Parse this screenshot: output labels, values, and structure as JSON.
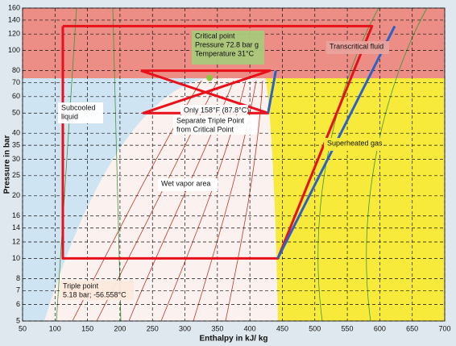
{
  "chart_data": {
    "type": "line",
    "xlabel": "Enthalpy  in  kJ/ kg",
    "ylabel": "Pressure in bar",
    "xlim": [
      50,
      700
    ],
    "ylim": [
      5,
      160
    ],
    "ylog": true,
    "grid": true,
    "xticks": [
      50,
      100,
      150,
      200,
      250,
      300,
      350,
      400,
      450,
      500,
      550,
      600,
      650,
      700
    ],
    "yticks": [
      5,
      6,
      7,
      8,
      10,
      12,
      14,
      16,
      20,
      25,
      30,
      35,
      40,
      50,
      60,
      70,
      80,
      100,
      120,
      140,
      160
    ],
    "series": [
      {
        "color": "#e8101a",
        "x": [
          112,
          588,
          443,
          112,
          112
        ],
        "values": [
          131,
          131,
          10,
          10,
          131
        ]
      },
      {
        "color": "#e8101a",
        "x": [
          232,
          431,
          236,
          428,
          232
        ],
        "values": [
          80,
          80,
          50,
          50,
          80
        ]
      },
      {
        "color": "#2a62c9",
        "x": [
          443,
          623
        ],
        "values": [
          10,
          131
        ]
      },
      {
        "color": "#2a62c9",
        "x": [
          440,
          428
        ],
        "values": [
          80,
          50
        ]
      }
    ],
    "critical_point": {
      "x": 338,
      "y": 73.8,
      "color": "#8dc63f"
    },
    "annotations": [
      {
        "lines": [
          "Critical point",
          "Pressure 72.8 bar g",
          "Temperature 31°C"
        ]
      },
      {
        "lines": [
          "Transcritical fluid"
        ]
      },
      {
        "lines": [
          "Subcooled",
          "liquid"
        ]
      },
      {
        "lines": [
          "Only 158°F (87.8°C)"
        ]
      },
      {
        "lines": [
          "Separate Triple Point",
          "from Critical Point"
        ]
      },
      {
        "lines": [
          "Superheated gas"
        ]
      },
      {
        "lines": [
          "Wet vapor area"
        ]
      },
      {
        "lines": [
          "Triple point",
          "5.18 bar; -56.558°C"
        ]
      }
    ]
  }
}
